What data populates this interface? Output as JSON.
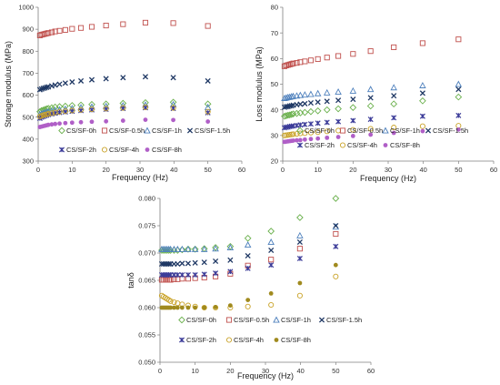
{
  "chart_data": [
    {
      "type": "scatter",
      "id": "storage",
      "xlabel": "Frequency (Hz)",
      "ylabel": "Storage modulus (MPa)",
      "xlim": [
        0,
        60
      ],
      "ylim": [
        300,
        1000
      ],
      "xticks": [
        0,
        10,
        20,
        30,
        40,
        50,
        60
      ],
      "yticks": [
        300,
        400,
        500,
        600,
        700,
        800,
        900,
        1000
      ],
      "grid": false,
      "legend_placement": "bottom",
      "series": [
        {
          "name": "CS/SF-0h",
          "marker": "diamond",
          "color": "#6ab04c",
          "x": [
            0.5,
            1,
            1.5,
            2,
            2.5,
            3,
            4,
            5,
            6.3,
            8,
            10,
            12.6,
            15.8,
            20,
            25,
            31.6,
            39.8,
            50
          ],
          "y": [
            525,
            530,
            532,
            535,
            538,
            540,
            543,
            546,
            548,
            550,
            553,
            555,
            558,
            560,
            563,
            566,
            568,
            560
          ]
        },
        {
          "name": "CS/SF-0.5h",
          "marker": "square",
          "color": "#c0504d",
          "x": [
            0.5,
            1,
            1.5,
            2,
            2.5,
            3,
            4,
            5,
            6.3,
            8,
            10,
            12.6,
            15.8,
            20,
            25,
            31.6,
            39.8,
            50
          ],
          "y": [
            872,
            875,
            877,
            879,
            881,
            883,
            886,
            890,
            893,
            897,
            902,
            906,
            911,
            917,
            923,
            930,
            928,
            915
          ]
        },
        {
          "name": "CS/SF-1h",
          "marker": "triangle",
          "color": "#4f81bd",
          "x": [
            0.5,
            1,
            1.5,
            2,
            2.5,
            3,
            4,
            5,
            6.3,
            8,
            10,
            12.6,
            15.8,
            20,
            25,
            31.6,
            39.8,
            50
          ],
          "y": [
            512,
            515,
            518,
            520,
            523,
            525,
            528,
            531,
            534,
            537,
            540,
            544,
            547,
            550,
            553,
            556,
            558,
            545
          ]
        },
        {
          "name": "CS/SF-1.5h",
          "marker": "x",
          "color": "#1f3864",
          "x": [
            0.5,
            1,
            1.5,
            2,
            2.5,
            3,
            4,
            5,
            6.3,
            8,
            10,
            12.6,
            15.8,
            20,
            25,
            31.6,
            39.8,
            50
          ],
          "y": [
            625,
            628,
            631,
            633,
            636,
            638,
            642,
            646,
            650,
            655,
            660,
            665,
            670,
            675,
            680,
            684,
            680,
            665
          ]
        },
        {
          "name": "CS/SF-2h",
          "marker": "star",
          "color": "#3b3b98",
          "x": [
            0.5,
            1,
            1.5,
            2,
            2.5,
            3,
            4,
            5,
            6.3,
            8,
            10,
            12.6,
            15.8,
            20,
            25,
            31.6,
            39.8,
            50
          ],
          "y": [
            495,
            500,
            503,
            506,
            509,
            512,
            515,
            518,
            521,
            524,
            527,
            530,
            533,
            536,
            540,
            543,
            540,
            520
          ]
        },
        {
          "name": "CS/SF-4h",
          "marker": "circle",
          "color": "#c9a227",
          "x": [
            0.5,
            1,
            1.5,
            2,
            2.5,
            3,
            4,
            5,
            6.3,
            8,
            10,
            12.6,
            15.8,
            20,
            25,
            31.6,
            39.8,
            50
          ],
          "y": [
            503,
            506,
            509,
            511,
            513,
            515,
            518,
            521,
            524,
            527,
            530,
            533,
            536,
            539,
            542,
            545,
            542,
            525
          ]
        },
        {
          "name": "CS/SF-8h",
          "marker": "dot",
          "color": "#b05fc7",
          "x": [
            0.5,
            1,
            1.5,
            2,
            2.5,
            3,
            4,
            5,
            6.3,
            8,
            10,
            12.6,
            15.8,
            20,
            25,
            31.6,
            39.8,
            50
          ],
          "y": [
            455,
            457,
            459,
            461,
            463,
            465,
            467,
            469,
            471,
            473,
            475,
            477,
            479,
            481,
            484,
            488,
            487,
            480
          ]
        }
      ]
    },
    {
      "type": "scatter",
      "id": "loss",
      "xlabel": "Frequency (Hz)",
      "ylabel": "Loss modulus (MPa)",
      "xlim": [
        0,
        60
      ],
      "ylim": [
        20,
        80
      ],
      "xticks": [
        0,
        10,
        20,
        30,
        40,
        50,
        60
      ],
      "yticks": [
        20,
        30,
        40,
        50,
        60,
        70,
        80
      ],
      "grid": false,
      "legend_placement": "bottom",
      "series": [
        {
          "name": "CS/SF-0h",
          "marker": "diamond",
          "color": "#6ab04c",
          "x": [
            0.5,
            1,
            1.5,
            2,
            2.5,
            3,
            4,
            5,
            6.3,
            8,
            10,
            12.6,
            15.8,
            20,
            25,
            31.6,
            39.8,
            50
          ],
          "y": [
            37.5,
            37.7,
            37.9,
            38,
            38.2,
            38.4,
            38.6,
            38.8,
            39,
            39.3,
            39.6,
            40,
            40.4,
            40.9,
            41.5,
            42.3,
            43.5,
            45
          ]
        },
        {
          "name": "CS/SF-0.5h",
          "marker": "square",
          "color": "#c0504d",
          "x": [
            0.5,
            1,
            1.5,
            2,
            2.5,
            3,
            4,
            5,
            6.3,
            8,
            10,
            12.6,
            15.8,
            20,
            25,
            31.6,
            39.8,
            50
          ],
          "y": [
            57,
            57.3,
            57.5,
            57.7,
            57.9,
            58.1,
            58.3,
            58.6,
            58.9,
            59.3,
            59.8,
            60.4,
            61,
            61.8,
            62.9,
            64.4,
            66,
            67.5
          ]
        },
        {
          "name": "CS/SF-1h",
          "marker": "triangle",
          "color": "#4f81bd",
          "x": [
            0.5,
            1,
            1.5,
            2,
            2.5,
            3,
            4,
            5,
            6.3,
            8,
            10,
            12.6,
            15.8,
            20,
            25,
            31.6,
            39.8,
            50
          ],
          "y": [
            44.5,
            44.7,
            44.9,
            45,
            45.2,
            45.3,
            45.5,
            45.7,
            45.9,
            46.1,
            46.4,
            46.7,
            47,
            47.4,
            48,
            48.7,
            49.5,
            50
          ]
        },
        {
          "name": "CS/SF-1.5h",
          "marker": "x",
          "color": "#1f3864",
          "x": [
            0.5,
            1,
            1.5,
            2,
            2.5,
            3,
            4,
            5,
            6.3,
            8,
            10,
            12.6,
            15.8,
            20,
            25,
            31.6,
            39.8,
            50
          ],
          "y": [
            41,
            41.2,
            41.3,
            41.5,
            41.6,
            41.8,
            42,
            42.2,
            42.4,
            42.7,
            43,
            43.3,
            43.7,
            44.1,
            44.7,
            45.5,
            46.5,
            48
          ]
        },
        {
          "name": "CS/SF-2h",
          "marker": "star",
          "color": "#3b3b98",
          "x": [
            0.5,
            1,
            1.5,
            2,
            2.5,
            3,
            4,
            5,
            6.3,
            8,
            10,
            12.6,
            15.8,
            20,
            25,
            31.6,
            39.8,
            50
          ],
          "y": [
            33,
            33.2,
            33.3,
            33.5,
            33.6,
            33.7,
            33.9,
            34.1,
            34.3,
            34.5,
            34.8,
            35.1,
            35.4,
            35.8,
            36.3,
            36.9,
            37.5,
            37.8
          ]
        },
        {
          "name": "CS/SF-4h",
          "marker": "circle",
          "color": "#c9a227",
          "x": [
            0.5,
            1,
            1.5,
            2,
            2.5,
            3,
            4,
            5,
            6.3,
            8,
            10,
            12.6,
            15.8,
            20,
            25,
            31.6,
            39.8,
            50
          ],
          "y": [
            30,
            30.1,
            30.2,
            30.3,
            30.4,
            30.5,
            30.6,
            30.8,
            30.9,
            31.1,
            31.3,
            31.6,
            31.9,
            32.2,
            32.6,
            33.1,
            33.6,
            33.8
          ]
        },
        {
          "name": "CS/SF-8h",
          "marker": "dot",
          "color": "#b05fc7",
          "x": [
            0.5,
            1,
            1.5,
            2,
            2.5,
            3,
            4,
            5,
            6.3,
            8,
            10,
            12.6,
            15.8,
            20,
            25,
            31.6,
            39.8,
            50
          ],
          "y": [
            27.5,
            27.6,
            27.7,
            27.8,
            27.9,
            28,
            28.1,
            28.2,
            28.4,
            28.6,
            28.8,
            29.1,
            29.4,
            29.8,
            30.3,
            31,
            31.7,
            32.3
          ]
        }
      ]
    },
    {
      "type": "scatter",
      "id": "tandelta",
      "xlabel": "Frequency (Hz)",
      "ylabel": "tanδ",
      "xlim": [
        0,
        60
      ],
      "ylim": [
        0.05,
        0.08
      ],
      "xticks": [
        0,
        10,
        20,
        30,
        40,
        50,
        60
      ],
      "yticks": [
        0.05,
        0.055,
        0.06,
        0.065,
        0.07,
        0.075,
        0.08
      ],
      "ytick_labels": [
        "0.050",
        "0.055",
        "0.060",
        "0.065",
        "0.070",
        "0.075",
        "0.080"
      ],
      "grid": false,
      "legend_placement": "bottom",
      "series": [
        {
          "name": "CS/SF-0h",
          "marker": "diamond",
          "color": "#6ab04c",
          "x": [
            0.5,
            1,
            1.5,
            2,
            2.5,
            3,
            4,
            5,
            6.3,
            8,
            10,
            12.6,
            15.8,
            20,
            25,
            31.6,
            39.8,
            50
          ],
          "y": [
            0.0705,
            0.0705,
            0.0705,
            0.0705,
            0.0705,
            0.0705,
            0.0705,
            0.0705,
            0.0706,
            0.0707,
            0.0707,
            0.0708,
            0.071,
            0.0712,
            0.0727,
            0.074,
            0.0765,
            0.08
          ]
        },
        {
          "name": "CS/SF-0.5h",
          "marker": "square",
          "color": "#c0504d",
          "x": [
            0.5,
            1,
            1.5,
            2,
            2.5,
            3,
            4,
            5,
            6.3,
            8,
            10,
            12.6,
            15.8,
            20,
            25,
            31.6,
            39.8,
            50
          ],
          "y": [
            0.0651,
            0.0651,
            0.0651,
            0.0651,
            0.0651,
            0.0651,
            0.0652,
            0.0652,
            0.0653,
            0.0653,
            0.0654,
            0.0655,
            0.0657,
            0.0662,
            0.0677,
            0.0688,
            0.0708,
            0.0735
          ]
        },
        {
          "name": "CS/SF-1h",
          "marker": "triangle",
          "color": "#4f81bd",
          "x": [
            0.5,
            1,
            1.5,
            2,
            2.5,
            3,
            4,
            5,
            6.3,
            8,
            10,
            12.6,
            15.8,
            20,
            25,
            31.6,
            39.8,
            50
          ],
          "y": [
            0.0707,
            0.0707,
            0.0707,
            0.0707,
            0.0707,
            0.0707,
            0.0707,
            0.0707,
            0.0707,
            0.0707,
            0.0707,
            0.0707,
            0.0708,
            0.071,
            0.0715,
            0.072,
            0.0732,
            0.0748
          ]
        },
        {
          "name": "CS/SF-1.5h",
          "marker": "x",
          "color": "#1f3864",
          "x": [
            0.5,
            1,
            1.5,
            2,
            2.5,
            3,
            4,
            5,
            6.3,
            8,
            10,
            12.6,
            15.8,
            20,
            25,
            31.6,
            39.8,
            50
          ],
          "y": [
            0.068,
            0.068,
            0.068,
            0.068,
            0.068,
            0.068,
            0.068,
            0.068,
            0.0681,
            0.0681,
            0.0682,
            0.0683,
            0.0685,
            0.0687,
            0.0695,
            0.0705,
            0.072,
            0.075
          ]
        },
        {
          "name": "CS/SF-2h",
          "marker": "star",
          "color": "#3b3b98",
          "x": [
            0.5,
            1,
            1.5,
            2,
            2.5,
            3,
            4,
            5,
            6.3,
            8,
            10,
            12.6,
            15.8,
            20,
            25,
            31.6,
            39.8,
            50
          ],
          "y": [
            0.066,
            0.066,
            0.066,
            0.066,
            0.066,
            0.066,
            0.066,
            0.066,
            0.066,
            0.066,
            0.066,
            0.0661,
            0.0663,
            0.0666,
            0.0672,
            0.0678,
            0.069,
            0.0712
          ]
        },
        {
          "name": "CS/SF-4h",
          "marker": "circle",
          "color": "#c9a227",
          "x": [
            0.5,
            1,
            1.5,
            2,
            2.5,
            3,
            4,
            5,
            6.3,
            8,
            10,
            12.6,
            15.8,
            20,
            25,
            31.6,
            39.8,
            50
          ],
          "y": [
            0.0622,
            0.062,
            0.0618,
            0.0616,
            0.0614,
            0.0612,
            0.061,
            0.0608,
            0.0606,
            0.0604,
            0.0602,
            0.06,
            0.06,
            0.06,
            0.0602,
            0.0605,
            0.0622,
            0.0657
          ]
        },
        {
          "name": "CS/SF-8h",
          "marker": "dot",
          "color": "#a08a1e",
          "x": [
            0.5,
            1,
            1.5,
            2,
            2.5,
            3,
            4,
            5,
            6.3,
            8,
            10,
            12.6,
            15.8,
            20,
            25,
            31.6,
            39.8,
            50
          ],
          "y": [
            0.06,
            0.06,
            0.06,
            0.06,
            0.06,
            0.06,
            0.06,
            0.06,
            0.06,
            0.06,
            0.06,
            0.06,
            0.0601,
            0.0604,
            0.0614,
            0.0626,
            0.0645,
            0.0678
          ]
        }
      ]
    }
  ]
}
